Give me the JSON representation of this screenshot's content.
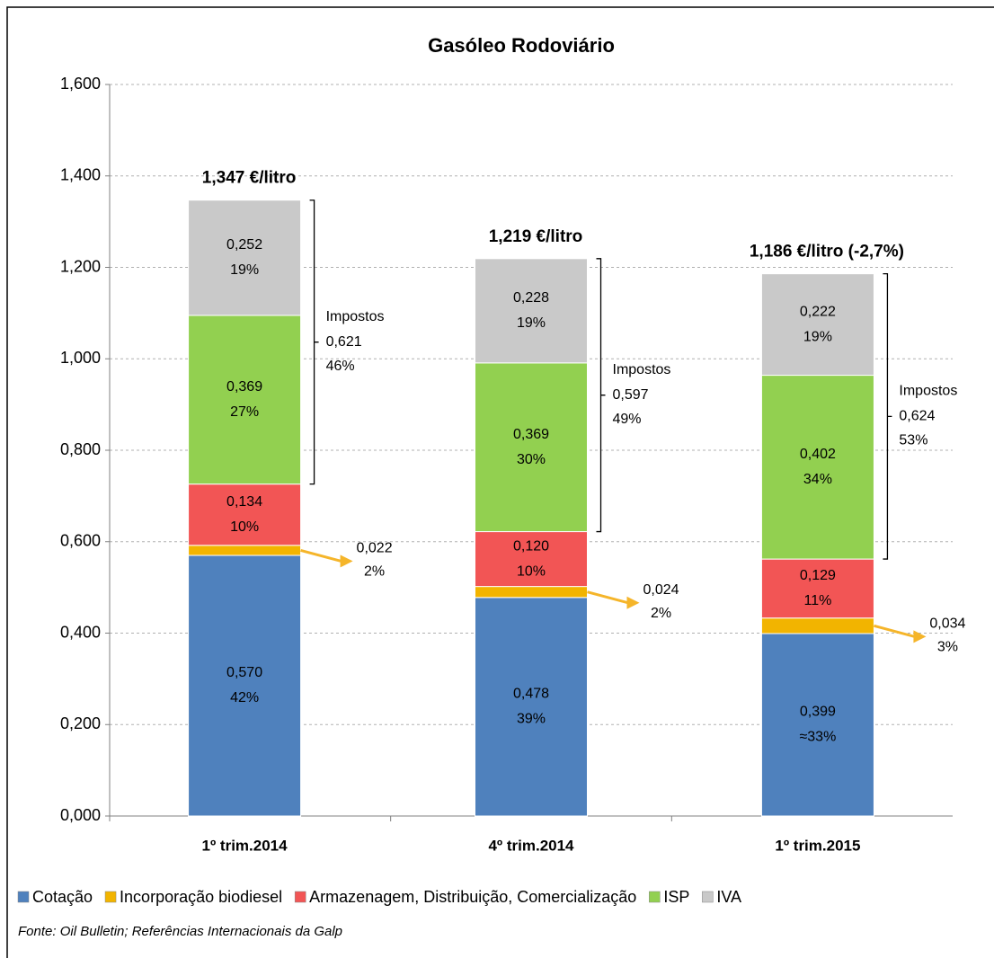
{
  "chart_data": {
    "type": "stacked-bar",
    "title": "Gasóleo Rodoviário",
    "categories": [
      "1º trim.2014",
      "4º trim.2014",
      "1º trim.2015"
    ],
    "series": [
      {
        "name": "Cotação",
        "color": "#4f81bd",
        "values": [
          0.57,
          0.478,
          0.399
        ],
        "value_labels": [
          "0,570",
          "0,478",
          "0,399"
        ],
        "percent_labels": [
          "42%",
          "39%",
          "≈33%"
        ]
      },
      {
        "name": "Incorporação biodiesel",
        "color": "#f2b400",
        "values": [
          0.022,
          0.024,
          0.034
        ],
        "value_labels": [
          "0,022",
          "0,024",
          "0,034"
        ],
        "percent_labels": [
          "2%",
          "2%",
          "3%"
        ]
      },
      {
        "name": "Armazenagem, Distribuição, Comercialização",
        "color": "#f25555",
        "values": [
          0.134,
          0.12,
          0.129
        ],
        "value_labels": [
          "0,134",
          "0,120",
          "0,129"
        ],
        "percent_labels": [
          "10%",
          "10%",
          "11%"
        ]
      },
      {
        "name": "ISP",
        "color": "#92d050",
        "values": [
          0.369,
          0.369,
          0.402
        ],
        "value_labels": [
          "0,369",
          "0,369",
          "0,402"
        ],
        "percent_labels": [
          "27%",
          "30%",
          "34%"
        ]
      },
      {
        "name": "IVA",
        "color": "#c9c9c9",
        "values": [
          0.252,
          0.228,
          0.222
        ],
        "value_labels": [
          "0,252",
          "0,228",
          "0,222"
        ],
        "percent_labels": [
          "19%",
          "19%",
          "19%"
        ]
      }
    ],
    "totals": [
      1.347,
      1.219,
      1.186
    ],
    "total_labels": [
      "1,347 €/litro",
      "1,219 €/litro",
      "1,186 €/litro (-2,7%)"
    ],
    "taxes": {
      "label": "Impostos",
      "values": [
        0.621,
        0.597,
        0.624
      ],
      "value_labels": [
        "0,621",
        "0,597",
        "0,624"
      ],
      "percent_labels": [
        "46%",
        "49%",
        "53%"
      ]
    },
    "ylim": [
      0,
      1.6
    ],
    "yticks": [
      {
        "value": 0,
        "label": "0,000"
      },
      {
        "value": 0.2,
        "label": "0,200"
      },
      {
        "value": 0.4,
        "label": "0,400"
      },
      {
        "value": 0.6,
        "label": "0,600"
      },
      {
        "value": 0.8,
        "label": "0,800"
      },
      {
        "value": 1.0,
        "label": "1,000"
      },
      {
        "value": 1.2,
        "label": "1,200"
      },
      {
        "value": 1.4,
        "label": "1,400"
      },
      {
        "value": 1.6,
        "label": "1,600"
      }
    ],
    "grid": true,
    "legend": "bottom",
    "source": "Fonte: Oil Bulletin; Referências Internacionais da Galp"
  }
}
